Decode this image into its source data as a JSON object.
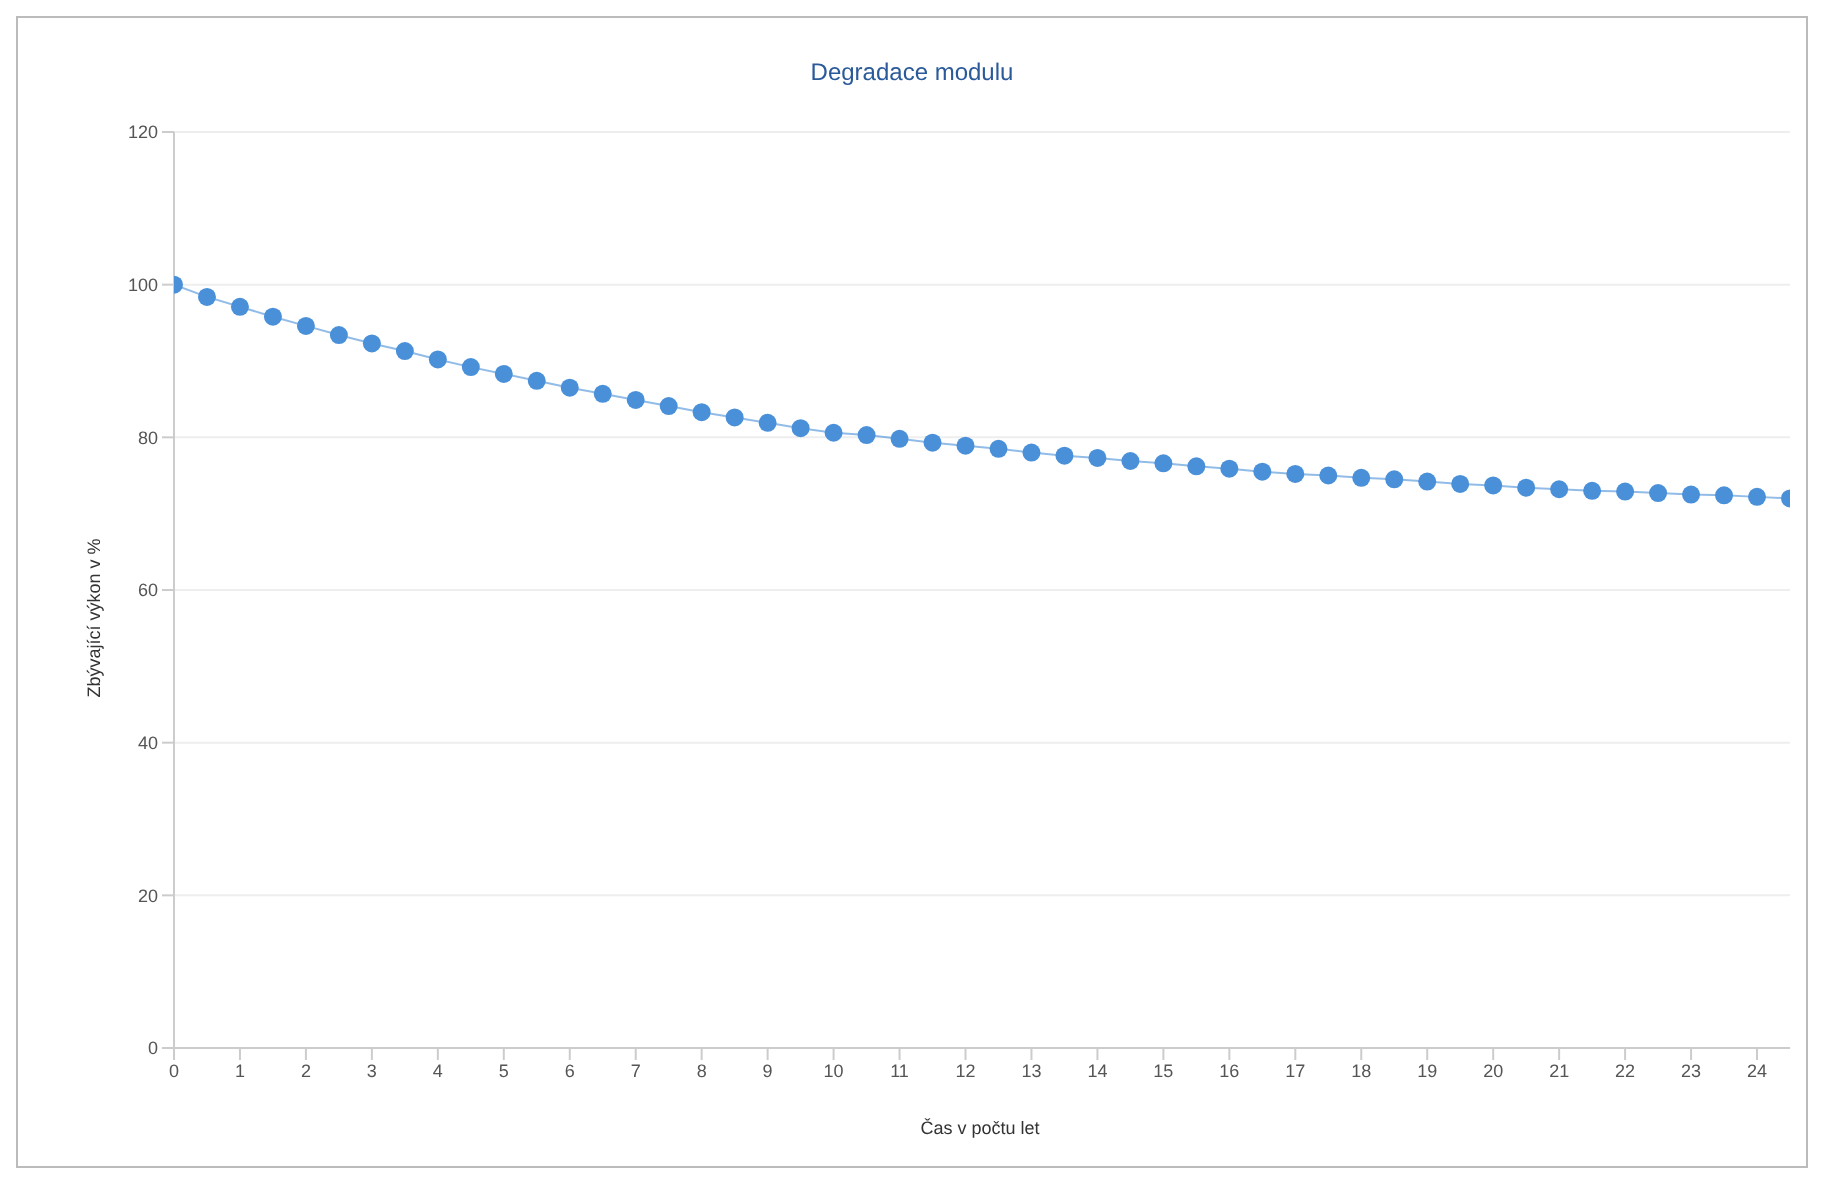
{
  "chart_data": {
    "type": "line",
    "title": "Degradace modulu",
    "xlabel": "Čas v počtu let",
    "ylabel": "Zbývající výkon v %",
    "x": [
      0,
      0.5,
      1,
      1.5,
      2,
      2.5,
      3,
      3.5,
      4,
      4.5,
      5,
      5.5,
      6,
      6.5,
      7,
      7.5,
      8,
      8.5,
      9,
      9.5,
      10,
      10.5,
      11,
      11.5,
      12,
      12.5,
      13,
      13.5,
      14,
      14.5,
      15,
      15.5,
      16,
      16.5,
      17,
      17.5,
      18,
      18.5,
      19,
      19.5,
      20,
      20.5,
      21,
      21.5,
      22,
      22.5,
      23,
      23.5,
      24,
      24.5
    ],
    "series": [
      {
        "color": "#4a90d9",
        "values": [
          100,
          98.4,
          97.1,
          95.8,
          94.6,
          93.4,
          92.3,
          91.3,
          90.2,
          89.2,
          88.3,
          87.4,
          86.5,
          85.7,
          84.9,
          84.1,
          83.3,
          82.6,
          81.9,
          81.2,
          80.6,
          80.3,
          79.8,
          79.3,
          78.9,
          78.5,
          78.0,
          77.6,
          77.3,
          76.9,
          76.6,
          76.2,
          75.9,
          75.5,
          75.2,
          75.0,
          74.7,
          74.5,
          74.2,
          73.9,
          73.7,
          73.4,
          73.2,
          73.0,
          72.9,
          72.7,
          72.5,
          72.4,
          72.2,
          72.0
        ]
      }
    ],
    "xlim": [
      0,
      24.5
    ],
    "xticks": [
      0,
      1,
      2,
      3,
      4,
      5,
      6,
      7,
      8,
      9,
      10,
      11,
      12,
      13,
      14,
      15,
      16,
      17,
      18,
      19,
      20,
      21,
      22,
      23,
      24
    ],
    "ylim": [
      0,
      120
    ],
    "yticks": [
      0,
      20,
      40,
      60,
      80,
      100,
      120
    ],
    "grid": "y",
    "legend": false,
    "marker": "circle",
    "line_style": "solid"
  }
}
